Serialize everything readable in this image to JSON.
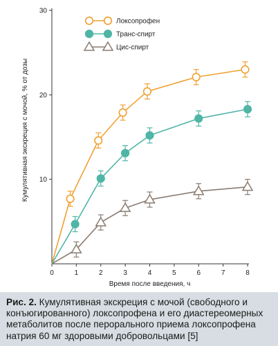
{
  "chart_data": {
    "type": "line",
    "x": [
      0,
      1,
      2,
      3,
      4,
      6,
      8
    ],
    "xlabel": "Время после введения, ч",
    "ylabel": "Кумулятивная экскреция с мочой, % от дозы",
    "xlim": [
      0,
      8
    ],
    "ylim": [
      0,
      30
    ],
    "x_ticks": [
      "0",
      "1",
      "2",
      "3",
      "4",
      "5",
      "6",
      "7",
      "8"
    ],
    "y_ticks": [
      "10",
      "20",
      "30"
    ],
    "grid": false,
    "legend_position": "top-center",
    "series": [
      {
        "name": "Локсопрофен",
        "color": "#f0a030",
        "marker": "circle-open",
        "x": [
          0,
          0.75,
          1.9,
          2.9,
          3.9,
          5.9,
          7.9
        ],
        "values": [
          0,
          7.7,
          14.6,
          17.9,
          20.4,
          22.1,
          23.0
        ],
        "errors": [
          0,
          0.9,
          0.9,
          0.9,
          0.9,
          0.9,
          0.9
        ]
      },
      {
        "name": "Транс-спирт",
        "color": "#4fb5a5",
        "marker": "circle-filled",
        "x": [
          0,
          0.95,
          2.0,
          3.0,
          4.0,
          6.0,
          8.0
        ],
        "values": [
          0,
          4.7,
          10.1,
          13.1,
          15.2,
          17.2,
          18.3
        ],
        "errors": [
          0,
          0.9,
          0.9,
          0.9,
          0.9,
          0.9,
          0.9
        ]
      },
      {
        "name": "Цис-спирт",
        "color": "#8a7b70",
        "marker": "triangle-open",
        "x": [
          0,
          1.0,
          2.0,
          3.0,
          4.0,
          6.0,
          8.0
        ],
        "values": [
          0,
          1.7,
          4.9,
          6.6,
          7.6,
          8.6,
          9.1
        ],
        "errors": [
          0,
          0.9,
          0.9,
          0.9,
          0.9,
          0.9,
          0.9
        ]
      }
    ]
  },
  "caption": {
    "label": "Рис. 2.",
    "text": " Кумулятивная экскреция с мочой (свободного и конъюгированного) локсопрофена и его диастереомерных метаболитов после перорального приема локсопрофена натрия 60 мг здоровыми добровольцами [5]"
  }
}
